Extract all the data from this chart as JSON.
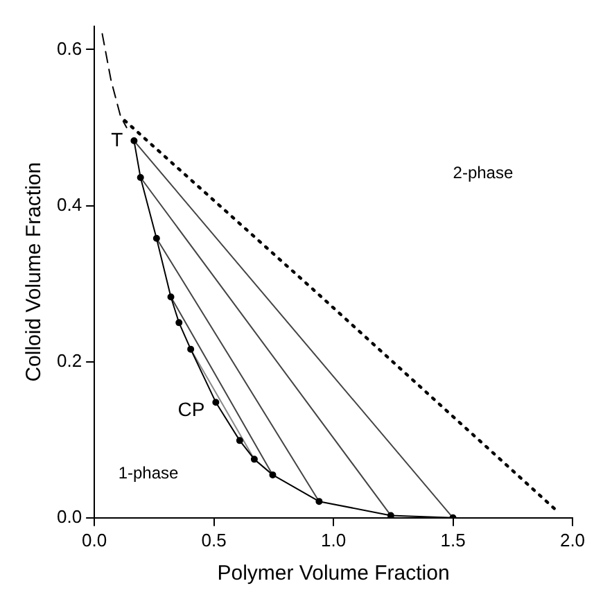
{
  "chart_data": {
    "type": "line",
    "xlabel": "Polymer Volume Fraction",
    "ylabel": "Colloid Volume Fraction",
    "xlim": [
      0,
      2.0
    ],
    "ylim": [
      0,
      0.63
    ],
    "xticks": [
      {
        "value": 0,
        "label": "0.0"
      },
      0.5,
      {
        "value": 1,
        "label": "1.0"
      },
      1.5,
      {
        "value": 2,
        "label": "2.0"
      }
    ],
    "yticks": [
      {
        "value": 0,
        "label": "0.0"
      },
      0.2,
      0.4,
      0.6
    ],
    "grid": false,
    "legend": false,
    "series": [
      {
        "type": "line",
        "color": "#000000",
        "marker": "circle",
        "line_style": "solid",
        "x": [
          0.166,
          0.193,
          0.26,
          0.32,
          0.354,
          0.403,
          0.508,
          0.608,
          0.669,
          0.746,
          0.94,
          1.24,
          1.5
        ],
        "values": [
          0.483,
          0.436,
          0.358,
          0.283,
          0.25,
          0.216,
          0.148,
          0.099,
          0.075,
          0.055,
          0.021,
          0.003,
          0.0
        ]
      },
      {
        "type": "line",
        "color": "#444444",
        "marker": "none",
        "line_style": "solid",
        "x": [
          0.166,
          1.5
        ],
        "values": [
          0.483,
          0.0
        ]
      },
      {
        "type": "line",
        "color": "#444444",
        "marker": "none",
        "line_style": "solid",
        "x": [
          0.193,
          1.24
        ],
        "values": [
          0.436,
          0.003
        ]
      },
      {
        "type": "line",
        "color": "#444444",
        "marker": "none",
        "line_style": "solid",
        "x": [
          0.26,
          0.94
        ],
        "values": [
          0.358,
          0.021
        ]
      },
      {
        "type": "line",
        "color": "#444444",
        "marker": "none",
        "line_style": "solid",
        "x": [
          0.32,
          0.746
        ],
        "values": [
          0.283,
          0.055
        ]
      },
      {
        "type": "line",
        "color": "#888888",
        "marker": "none",
        "line_style": "solid",
        "x": [
          0.403,
          0.669
        ],
        "values": [
          0.216,
          0.075
        ]
      },
      {
        "type": "line",
        "color": "#000000",
        "marker": "none",
        "line_style": "dashed",
        "x": [
          0.033,
          0.07,
          0.11,
          0.135
        ],
        "values": [
          0.62,
          0.56,
          0.514,
          0.5
        ]
      },
      {
        "type": "line",
        "color": "#000000",
        "marker": "none",
        "line_style": "dotted",
        "x": [
          0.127,
          0.91,
          1.945
        ],
        "values": [
          0.509,
          0.294,
          0.006
        ]
      }
    ],
    "annotations": [
      {
        "text": "T",
        "x": 0.166,
        "y": 0.483
      },
      {
        "text": "CP",
        "x": 0.508,
        "y": 0.148
      },
      "1-phase",
      "2-phase"
    ]
  }
}
